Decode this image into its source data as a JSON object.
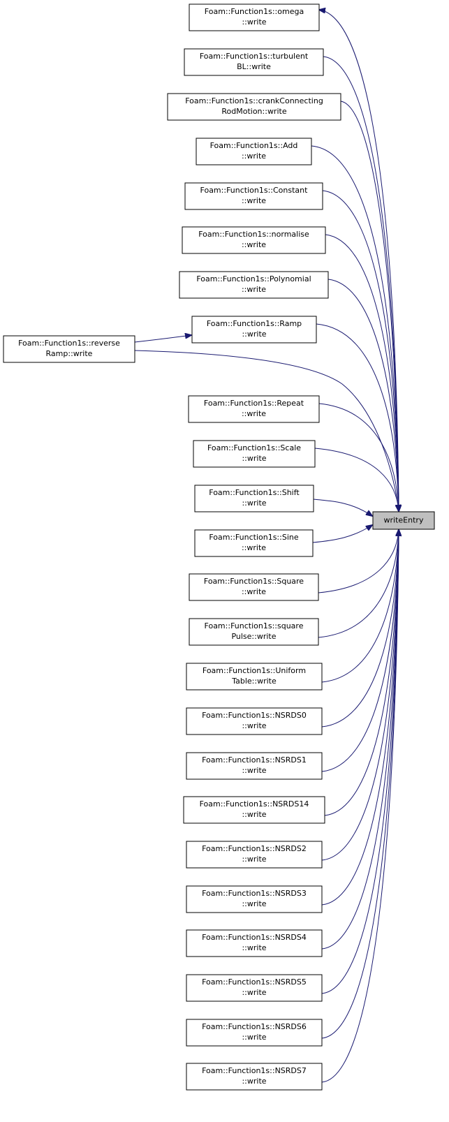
{
  "target": {
    "label": "writeEntry"
  },
  "nodes": [
    {
      "lines": [
        "Foam::Function1s::omega",
        "::write"
      ]
    },
    {
      "lines": [
        "Foam::Function1s::turbulent",
        "BL::write"
      ]
    },
    {
      "lines": [
        "Foam::Function1s::crankConnecting",
        "RodMotion::write"
      ]
    },
    {
      "lines": [
        "Foam::Function1s::Add",
        "::write"
      ]
    },
    {
      "lines": [
        "Foam::Function1s::Constant",
        "::write"
      ]
    },
    {
      "lines": [
        "Foam::Function1s::normalise",
        "::write"
      ]
    },
    {
      "lines": [
        "Foam::Function1s::Polynomial",
        "::write"
      ]
    },
    {
      "lines": [
        "Foam::Function1s::Ramp",
        "::write"
      ]
    },
    {
      "lines": [
        "Foam::Function1s::reverse",
        "Ramp::write"
      ]
    },
    {
      "lines": [
        "Foam::Function1s::Repeat",
        "::write"
      ]
    },
    {
      "lines": [
        "Foam::Function1s::Scale",
        "::write"
      ]
    },
    {
      "lines": [
        "Foam::Function1s::Shift",
        "::write"
      ]
    },
    {
      "lines": [
        "Foam::Function1s::Sine",
        "::write"
      ]
    },
    {
      "lines": [
        "Foam::Function1s::Square",
        "::write"
      ]
    },
    {
      "lines": [
        "Foam::Function1s::square",
        "Pulse::write"
      ]
    },
    {
      "lines": [
        "Foam::Function1s::Uniform",
        "Table::write"
      ]
    },
    {
      "lines": [
        "Foam::Function1s::NSRDS0",
        "::write"
      ]
    },
    {
      "lines": [
        "Foam::Function1s::NSRDS1",
        "::write"
      ]
    },
    {
      "lines": [
        "Foam::Function1s::NSRDS14",
        "::write"
      ]
    },
    {
      "lines": [
        "Foam::Function1s::NSRDS2",
        "::write"
      ]
    },
    {
      "lines": [
        "Foam::Function1s::NSRDS3",
        "::write"
      ]
    },
    {
      "lines": [
        "Foam::Function1s::NSRDS4",
        "::write"
      ]
    },
    {
      "lines": [
        "Foam::Function1s::NSRDS5",
        "::write"
      ]
    },
    {
      "lines": [
        "Foam::Function1s::NSRDS6",
        "::write"
      ]
    },
    {
      "lines": [
        "Foam::Function1s::NSRDS7",
        "::write"
      ]
    }
  ]
}
